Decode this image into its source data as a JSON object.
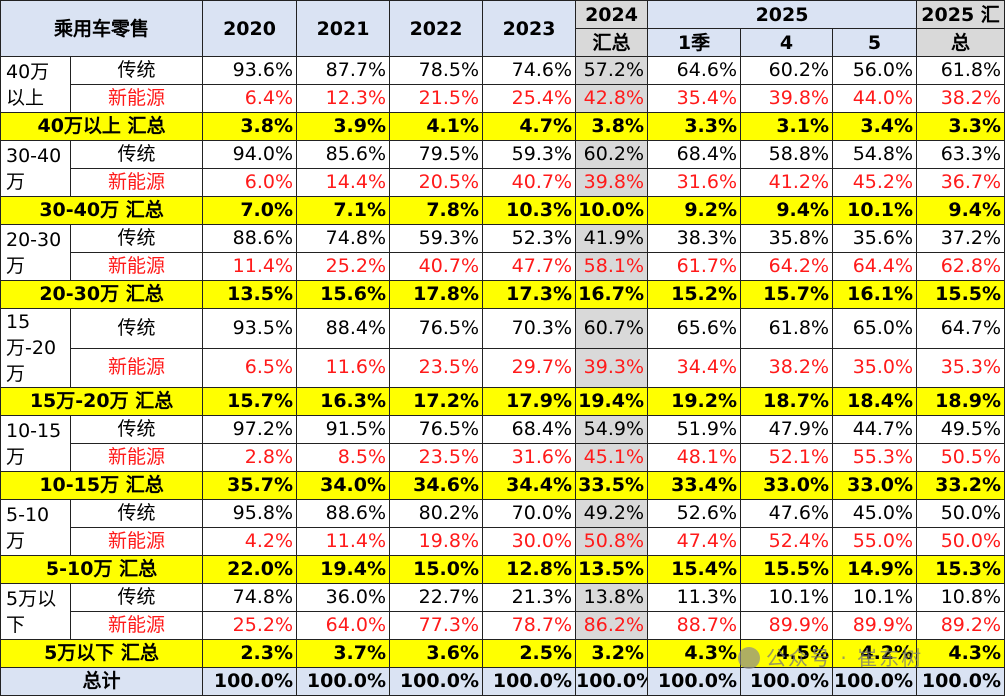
{
  "header": {
    "corner": "乘用车零售",
    "years": [
      "2020",
      "2021",
      "2022",
      "2023"
    ],
    "y2024_top": "2024",
    "y2024_bottom": "汇总",
    "y2025_top": "2025",
    "y2025_subs": [
      "1季",
      "4",
      "5"
    ],
    "y2025sum_top": "2025 汇",
    "y2025sum_bottom": "总"
  },
  "groups": [
    {
      "label": "40万以上",
      "rows": [
        {
          "type": "传统",
          "values": [
            "93.6%",
            "87.7%",
            "78.5%",
            "74.6%",
            "57.2%",
            "64.6%",
            "60.2%",
            "56.0%",
            "61.8%"
          ]
        },
        {
          "type": "新能源",
          "values": [
            "6.4%",
            "12.3%",
            "21.5%",
            "25.4%",
            "42.8%",
            "35.4%",
            "39.8%",
            "44.0%",
            "38.2%"
          ]
        }
      ],
      "sum_label": "40万以上 汇总",
      "sum_values": [
        "3.8%",
        "3.9%",
        "4.1%",
        "4.7%",
        "3.8%",
        "3.3%",
        "3.1%",
        "3.4%",
        "3.3%"
      ]
    },
    {
      "label": "30-40万",
      "rows": [
        {
          "type": "传统",
          "values": [
            "94.0%",
            "85.6%",
            "79.5%",
            "59.3%",
            "60.2%",
            "68.4%",
            "58.8%",
            "54.8%",
            "63.3%"
          ]
        },
        {
          "type": "新能源",
          "values": [
            "6.0%",
            "14.4%",
            "20.5%",
            "40.7%",
            "39.8%",
            "31.6%",
            "41.2%",
            "45.2%",
            "36.7%"
          ]
        }
      ],
      "sum_label": "30-40万 汇总",
      "sum_values": [
        "7.0%",
        "7.1%",
        "7.8%",
        "10.3%",
        "10.0%",
        "9.2%",
        "9.4%",
        "10.1%",
        "9.4%"
      ]
    },
    {
      "label": "20-30万",
      "rows": [
        {
          "type": "传统",
          "values": [
            "88.6%",
            "74.8%",
            "59.3%",
            "52.3%",
            "41.9%",
            "38.3%",
            "35.8%",
            "35.6%",
            "37.2%"
          ]
        },
        {
          "type": "新能源",
          "values": [
            "11.4%",
            "25.2%",
            "40.7%",
            "47.7%",
            "58.1%",
            "61.7%",
            "64.2%",
            "64.4%",
            "62.8%"
          ]
        }
      ],
      "sum_label": "20-30万 汇总",
      "sum_values": [
        "13.5%",
        "15.6%",
        "17.8%",
        "17.3%",
        "16.7%",
        "15.2%",
        "15.7%",
        "16.1%",
        "15.5%"
      ]
    },
    {
      "label": "15万-20万",
      "rows": [
        {
          "type": "传统",
          "values": [
            "93.5%",
            "88.4%",
            "76.5%",
            "70.3%",
            "60.7%",
            "65.6%",
            "61.8%",
            "65.0%",
            "64.7%"
          ]
        },
        {
          "type": "新能源",
          "values": [
            "6.5%",
            "11.6%",
            "23.5%",
            "29.7%",
            "39.3%",
            "34.4%",
            "38.2%",
            "35.0%",
            "35.3%"
          ]
        }
      ],
      "sum_label": "15万-20万 汇总",
      "sum_values": [
        "15.7%",
        "16.3%",
        "17.2%",
        "17.9%",
        "19.4%",
        "19.2%",
        "18.7%",
        "18.4%",
        "18.9%"
      ]
    },
    {
      "label": "10-15万",
      "rows": [
        {
          "type": "传统",
          "values": [
            "97.2%",
            "91.5%",
            "76.5%",
            "68.4%",
            "54.9%",
            "51.9%",
            "47.9%",
            "44.7%",
            "49.5%"
          ]
        },
        {
          "type": "新能源",
          "values": [
            "2.8%",
            "8.5%",
            "23.5%",
            "31.6%",
            "45.1%",
            "48.1%",
            "52.1%",
            "55.3%",
            "50.5%"
          ]
        }
      ],
      "sum_label": "10-15万 汇总",
      "sum_values": [
        "35.7%",
        "34.0%",
        "34.6%",
        "34.4%",
        "33.5%",
        "33.4%",
        "33.0%",
        "33.0%",
        "33.2%"
      ]
    },
    {
      "label": "5-10万",
      "rows": [
        {
          "type": "传统",
          "values": [
            "95.8%",
            "88.6%",
            "80.2%",
            "70.0%",
            "49.2%",
            "52.6%",
            "47.6%",
            "45.0%",
            "50.0%"
          ]
        },
        {
          "type": "新能源",
          "values": [
            "4.2%",
            "11.4%",
            "19.8%",
            "30.0%",
            "50.8%",
            "47.4%",
            "52.4%",
            "55.0%",
            "50.0%"
          ]
        }
      ],
      "sum_label": "5-10万 汇总",
      "sum_values": [
        "22.0%",
        "19.4%",
        "15.0%",
        "12.8%",
        "13.5%",
        "15.4%",
        "15.5%",
        "14.9%",
        "15.3%"
      ]
    },
    {
      "label": "5万以下",
      "rows": [
        {
          "type": "传统",
          "values": [
            "74.8%",
            "36.0%",
            "22.7%",
            "21.3%",
            "13.8%",
            "11.3%",
            "10.1%",
            "10.1%",
            "10.8%"
          ]
        },
        {
          "type": "新能源",
          "values": [
            "25.2%",
            "64.0%",
            "77.3%",
            "78.7%",
            "86.2%",
            "88.7%",
            "89.9%",
            "89.9%",
            "89.2%"
          ]
        }
      ],
      "sum_label": "5万以下 汇总",
      "sum_values": [
        "2.3%",
        "3.7%",
        "3.6%",
        "2.5%",
        "3.2%",
        "4.3%",
        "4.5%",
        "4.2%",
        "4.3%"
      ]
    }
  ],
  "total": {
    "label": "总计",
    "values": [
      "100.0%",
      "100.0%",
      "100.0%",
      "100.0%",
      "100.0%",
      "100.0%",
      "100.0%",
      "100.0%",
      "100.0%"
    ]
  },
  "watermark": "公众号 · 崔东树",
  "colors": {
    "header_bg": "#dae3f3",
    "sum_bg": "#ffff00",
    "col2024_bg": "#d9d9d9",
    "nev_text": "#ff1a1a"
  }
}
